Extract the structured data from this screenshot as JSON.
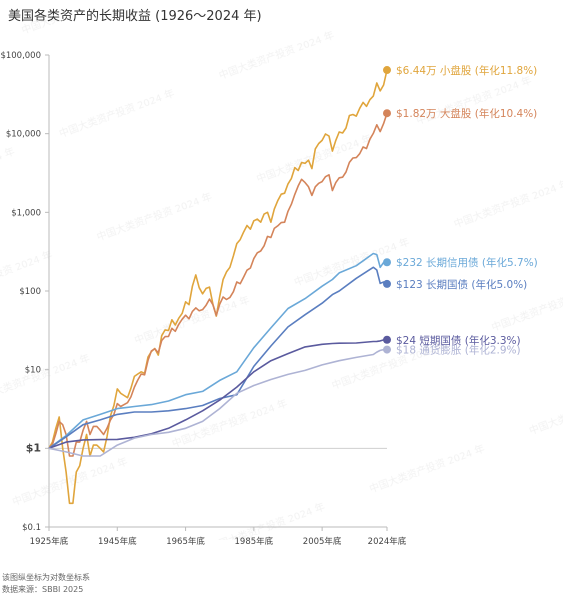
{
  "chart_data": {
    "type": "line",
    "title": "美国各类资产的长期收益 (1926～2024 年)",
    "y_scale": "log",
    "ylim": [
      0.1,
      100000
    ],
    "xlim": [
      1925,
      2024
    ],
    "y_ticks": [
      {
        "value": 100000,
        "label": "$100,000"
      },
      {
        "value": 10000,
        "label": "$10,000"
      },
      {
        "value": 1000,
        "label": "$1,000"
      },
      {
        "value": 100,
        "label": "$100"
      },
      {
        "value": 10,
        "label": "$10"
      },
      {
        "value": 1,
        "label": "$1"
      },
      {
        "value": 0.1,
        "label": "$0.1"
      }
    ],
    "x_ticks": [
      {
        "value": 1925,
        "label": "1925年底"
      },
      {
        "value": 1945,
        "label": "1945年底"
      },
      {
        "value": 1965,
        "label": "1965年底"
      },
      {
        "value": 1985,
        "label": "1985年底"
      },
      {
        "value": 2005,
        "label": "2005年底"
      },
      {
        "value": 2024,
        "label": "2024年底"
      }
    ],
    "baseline": 1,
    "grid": false,
    "series": [
      {
        "name": "$6.44万 小盘股 (年化11.8%)",
        "color": "#e0a53c",
        "x": [
          1925,
          1926,
          1927,
          1928,
          1929,
          1930,
          1931,
          1932,
          1933,
          1934,
          1935,
          1936,
          1937,
          1938,
          1939,
          1940,
          1941,
          1942,
          1943,
          1944,
          1945,
          1946,
          1947,
          1948,
          1949,
          1950,
          1951,
          1952,
          1953,
          1954,
          1955,
          1956,
          1957,
          1958,
          1959,
          1960,
          1961,
          1962,
          1963,
          1964,
          1965,
          1966,
          1967,
          1968,
          1969,
          1970,
          1971,
          1972,
          1973,
          1974,
          1975,
          1976,
          1977,
          1978,
          1979,
          1980,
          1981,
          1982,
          1983,
          1984,
          1985,
          1986,
          1987,
          1988,
          1989,
          1990,
          1991,
          1992,
          1993,
          1994,
          1995,
          1996,
          1997,
          1998,
          1999,
          2000,
          2001,
          2002,
          2003,
          2004,
          2005,
          2006,
          2007,
          2008,
          2009,
          2010,
          2011,
          2012,
          2013,
          2014,
          2015,
          2016,
          2017,
          2018,
          2019,
          2020,
          2021,
          2022,
          2023,
          2024
        ],
        "values": [
          1,
          1.2,
          1.8,
          2.5,
          1,
          0.5,
          0.2,
          0.2,
          0.5,
          0.6,
          1,
          1.5,
          0.8,
          1.1,
          1.1,
          1,
          0.9,
          1.4,
          2.6,
          3.5,
          5.7,
          5,
          4.7,
          4.4,
          5.8,
          8.2,
          8.8,
          9.4,
          9,
          14.5,
          17,
          18.6,
          15.3,
          27,
          32,
          31.5,
          43,
          37,
          45,
          52,
          73,
          67,
          115,
          160,
          110,
          92,
          108,
          112,
          68,
          48,
          85,
          140,
          175,
          200,
          280,
          400,
          450,
          560,
          680,
          610,
          780,
          820,
          750,
          950,
          1000,
          750,
          1100,
          1400,
          1700,
          1750,
          2300,
          2700,
          3700,
          3400,
          4300,
          4200,
          4600,
          3600,
          6400,
          7500,
          8200,
          9900,
          9300,
          6000,
          8200,
          10500,
          10200,
          11800,
          17000,
          17500,
          16700,
          21000,
          25000,
          22200,
          27000,
          30000,
          44000,
          35000,
          41500,
          64400
        ]
      },
      {
        "name": "$1.82万 大盘股 (年化10.4%)",
        "color": "#d4845a",
        "x": [
          1925,
          1926,
          1927,
          1928,
          1929,
          1930,
          1931,
          1932,
          1933,
          1934,
          1935,
          1936,
          1937,
          1938,
          1939,
          1940,
          1941,
          1942,
          1943,
          1944,
          1945,
          1946,
          1947,
          1948,
          1949,
          1950,
          1951,
          1952,
          1953,
          1954,
          1955,
          1956,
          1957,
          1958,
          1959,
          1960,
          1961,
          1962,
          1963,
          1964,
          1965,
          1966,
          1967,
          1968,
          1969,
          1970,
          1971,
          1972,
          1973,
          1974,
          1975,
          1976,
          1977,
          1978,
          1979,
          1980,
          1981,
          1982,
          1983,
          1984,
          1985,
          1986,
          1987,
          1988,
          1989,
          1990,
          1991,
          1992,
          1993,
          1994,
          1995,
          1996,
          1997,
          1998,
          1999,
          2000,
          2001,
          2002,
          2003,
          2004,
          2005,
          2006,
          2007,
          2008,
          2009,
          2010,
          2011,
          2012,
          2013,
          2014,
          2015,
          2016,
          2017,
          2018,
          2019,
          2020,
          2021,
          2022,
          2023,
          2024
        ],
        "values": [
          1,
          1.12,
          1.53,
          2.2,
          2,
          1.5,
          0.8,
          0.8,
          1.2,
          1.2,
          1.7,
          2.2,
          1.5,
          1.9,
          1.9,
          1.7,
          1.5,
          1.8,
          2.3,
          2.7,
          3.7,
          3.4,
          3.6,
          3.8,
          4.5,
          6,
          7.4,
          8.8,
          8.6,
          13.1,
          17.3,
          18.4,
          16.4,
          23.5,
          26.3,
          26.5,
          33.6,
          30.7,
          37.6,
          43.8,
          49.3,
          44.3,
          55,
          61,
          56,
          58,
          66,
          79,
          67,
          49,
          68,
          84,
          78,
          83,
          98,
          130,
          124,
          150,
          184,
          196,
          258,
          306,
          322,
          375,
          494,
          479,
          625,
          672,
          740,
          749,
          1030,
          1270,
          1690,
          2170,
          2630,
          2390,
          2110,
          1640,
          2110,
          2340,
          2460,
          2840,
          3000,
          1890,
          2390,
          2750,
          2800,
          3260,
          4310,
          4900,
          4970,
          5560,
          6770,
          6470,
          8510,
          10080,
          12970,
          10620,
          13410,
          18200
        ]
      },
      {
        "name": "$232 长期信用债 (年化5.7%)",
        "color": "#6aa8d8",
        "x": [
          1925,
          1930,
          1935,
          1940,
          1945,
          1950,
          1955,
          1960,
          1965,
          1970,
          1975,
          1980,
          1985,
          1990,
          1995,
          2000,
          2005,
          2008,
          2010,
          2015,
          2020,
          2021,
          2022,
          2023,
          2024
        ],
        "values": [
          1,
          1.45,
          2.3,
          2.7,
          3.2,
          3.4,
          3.6,
          4,
          4.8,
          5.3,
          7.3,
          9.4,
          19,
          34,
          60,
          80,
          115,
          140,
          170,
          210,
          300,
          290,
          200,
          230,
          232
        ]
      },
      {
        "name": "$123 长期国债 (年化5.0%)",
        "color": "#5a7ec0",
        "x": [
          1925,
          1930,
          1935,
          1940,
          1945,
          1950,
          1955,
          1960,
          1965,
          1970,
          1975,
          1980,
          1985,
          1990,
          1995,
          2000,
          2005,
          2008,
          2010,
          2015,
          2020,
          2021,
          2022,
          2023,
          2024
        ],
        "values": [
          1,
          1.4,
          2,
          2.3,
          2.7,
          2.9,
          2.9,
          3,
          3.2,
          3.5,
          4.3,
          4.8,
          11,
          20,
          35,
          50,
          70,
          90,
          100,
          145,
          200,
          185,
          125,
          130,
          123
        ]
      },
      {
        "name": "$24 短期国债 (年化3.3%)",
        "color": "#5a5a9e",
        "x": [
          1925,
          1930,
          1935,
          1940,
          1945,
          1950,
          1955,
          1960,
          1965,
          1970,
          1975,
          1980,
          1985,
          1990,
          1995,
          2000,
          2005,
          2008,
          2010,
          2015,
          2020,
          2021,
          2022,
          2023,
          2024
        ],
        "values": [
          1,
          1.2,
          1.28,
          1.29,
          1.3,
          1.38,
          1.53,
          1.8,
          2.3,
          3,
          4.1,
          6,
          9.4,
          13,
          16,
          19.5,
          21,
          21.5,
          21.7,
          21.8,
          22.8,
          22.9,
          23.2,
          23.9,
          24
        ]
      },
      {
        "name": "$18 通货膨胀 (年化2.9%)",
        "color": "#aeb3d4",
        "x": [
          1925,
          1930,
          1935,
          1940,
          1945,
          1950,
          1955,
          1960,
          1965,
          1970,
          1975,
          1980,
          1985,
          1990,
          1995,
          2000,
          2005,
          2010,
          2015,
          2020,
          2021,
          2022,
          2023,
          2024
        ],
        "values": [
          1,
          0.9,
          0.8,
          0.8,
          1.1,
          1.35,
          1.5,
          1.6,
          1.8,
          2.2,
          3.2,
          5,
          6.3,
          7.5,
          8.7,
          9.8,
          11.5,
          13,
          14.3,
          15.6,
          16.7,
          17.6,
          18,
          18
        ]
      }
    ]
  },
  "footnotes": {
    "line1": "该图纵坐标为对数坐标系",
    "line2": "数据来源：SBBI 2025"
  }
}
